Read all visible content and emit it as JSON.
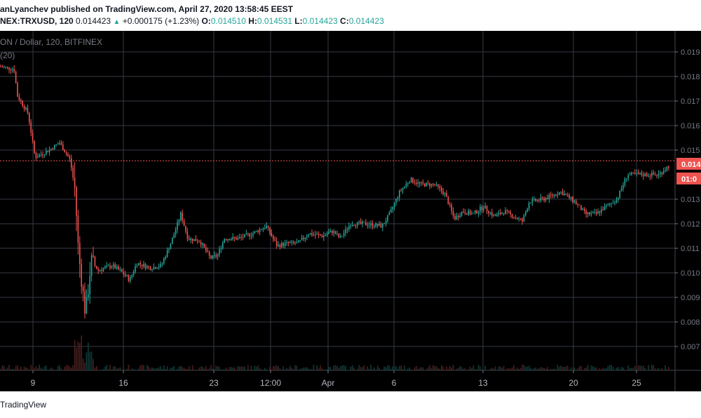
{
  "header": {
    "publisher_line": "anLyanchev published on TradingView.com, April 27, 2020 13:58:45 EEST",
    "symbol": "NEX:TRXUSD, 120",
    "last_price": "0.014423",
    "change": "+0.000175 (+1.23%)",
    "open_label": "O:",
    "open_value": "0.014510",
    "high_label": "H:",
    "high_value": "0.014531",
    "low_label": "L:",
    "low_value": "0.014423",
    "close_label": "C:",
    "close_value": "0.014423",
    "accent_color": "#26a69a"
  },
  "chart_title": "ON / Dollar, 120, BITFINEX",
  "indicator_label": "(20)",
  "price_label": "0.014",
  "countdown_label": "01:0",
  "footer": {
    "brand": "TradingView"
  },
  "chart_data": {
    "type": "candlestick",
    "x_tick_labels": [
      "9",
      "16",
      "23",
      "12:00",
      "Apr",
      "6",
      "13",
      "20",
      "25"
    ],
    "y_tick_labels": [
      "0.019",
      "0.018",
      "0.017",
      "0.016",
      "0.015",
      "0.013",
      "0.012",
      "0.011",
      "0.010",
      "0.009",
      "0.008",
      "0.007"
    ],
    "ylim": [
      0.0065,
      0.0195
    ],
    "current_price": 0.014423,
    "colors": {
      "up": "#26a69a",
      "down": "#ef5350",
      "grid": "#363a45",
      "price_line": "#ef5350"
    },
    "close_path": [
      [
        0,
        0.0184
      ],
      [
        20,
        0.0183
      ],
      [
        25,
        0.0172
      ],
      [
        40,
        0.0165
      ],
      [
        50,
        0.0147
      ],
      [
        70,
        0.015
      ],
      [
        85,
        0.0153
      ],
      [
        100,
        0.0146
      ],
      [
        107,
        0.0134
      ],
      [
        112,
        0.0108
      ],
      [
        118,
        0.0093
      ],
      [
        122,
        0.0083
      ],
      [
        130,
        0.0105
      ],
      [
        140,
        0.0101
      ],
      [
        160,
        0.0103
      ],
      [
        175,
        0.01
      ],
      [
        185,
        0.0097
      ],
      [
        195,
        0.0104
      ],
      [
        215,
        0.0102
      ],
      [
        230,
        0.0103
      ],
      [
        245,
        0.0113
      ],
      [
        258,
        0.0124
      ],
      [
        268,
        0.0114
      ],
      [
        285,
        0.0113
      ],
      [
        300,
        0.0106
      ],
      [
        310,
        0.0107
      ],
      [
        320,
        0.0114
      ],
      [
        340,
        0.0114
      ],
      [
        360,
        0.0116
      ],
      [
        380,
        0.0119
      ],
      [
        395,
        0.0111
      ],
      [
        410,
        0.0112
      ],
      [
        425,
        0.0112
      ],
      [
        440,
        0.0116
      ],
      [
        460,
        0.0115
      ],
      [
        475,
        0.0117
      ],
      [
        485,
        0.0114
      ],
      [
        500,
        0.012
      ],
      [
        520,
        0.012
      ],
      [
        545,
        0.0119
      ],
      [
        556,
        0.0124
      ],
      [
        570,
        0.0133
      ],
      [
        585,
        0.0138
      ],
      [
        600,
        0.0136
      ],
      [
        620,
        0.0136
      ],
      [
        635,
        0.0132
      ],
      [
        648,
        0.0122
      ],
      [
        660,
        0.0125
      ],
      [
        675,
        0.0124
      ],
      [
        690,
        0.0127
      ],
      [
        705,
        0.0123
      ],
      [
        720,
        0.0125
      ],
      [
        745,
        0.0121
      ],
      [
        755,
        0.0129
      ],
      [
        775,
        0.013
      ],
      [
        800,
        0.0133
      ],
      [
        820,
        0.0129
      ],
      [
        835,
        0.0124
      ],
      [
        850,
        0.0124
      ],
      [
        865,
        0.0127
      ],
      [
        880,
        0.013
      ],
      [
        895,
        0.014
      ],
      [
        915,
        0.014
      ],
      [
        940,
        0.014
      ],
      [
        955,
        0.0144
      ]
    ]
  }
}
